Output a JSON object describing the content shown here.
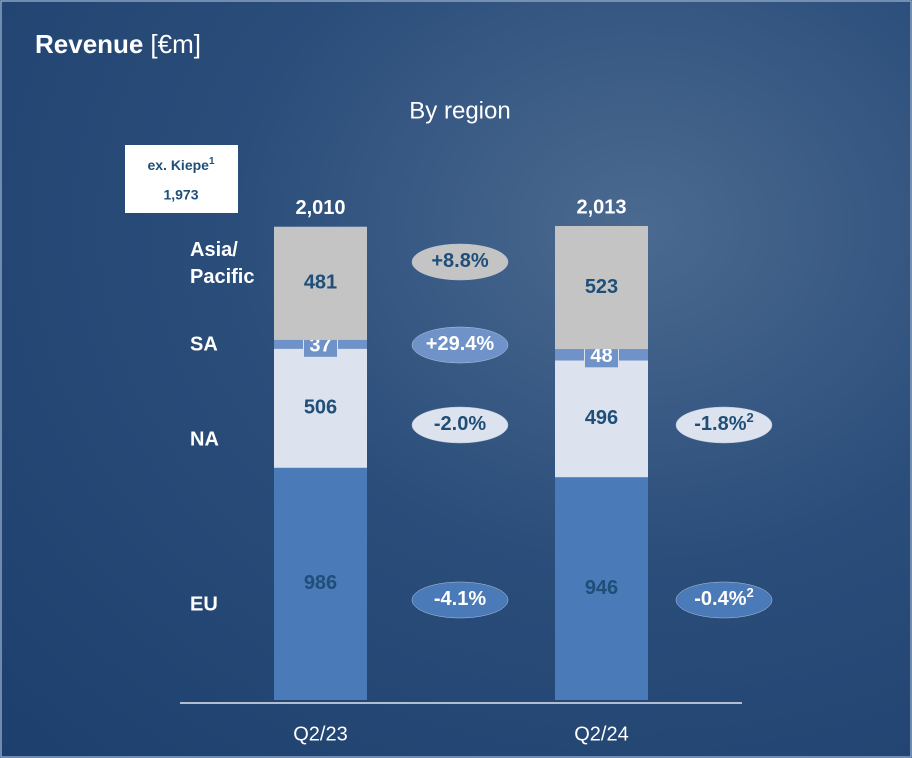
{
  "chart_data": {
    "type": "bar",
    "stacked": true,
    "title": "Revenue",
    "unit": "[€m]",
    "subtitle": "By region",
    "categories": [
      "Q2/23",
      "Q2/24"
    ],
    "totals": {
      "values": [
        2010,
        2013
      ],
      "value_labels": [
        "2,010",
        "2,013"
      ]
    },
    "note": {
      "label": "ex. Kiepe",
      "footnote": "1",
      "value_label": "1,973"
    },
    "series": [
      {
        "name": "EU",
        "color": "#4a7ab8",
        "label_color": "#1f4e79",
        "values": [
          986,
          946
        ],
        "change": {
          "label": "-4.1%"
        },
        "change_ex": {
          "label": "-0.4%",
          "footnote": "2"
        }
      },
      {
        "name": "NA",
        "color": "#dce3ee",
        "label_color": "#1f4e79",
        "values": [
          506,
          496
        ],
        "change": {
          "label": "-2.0%"
        },
        "change_ex": {
          "label": "-1.8%",
          "footnote": "2"
        }
      },
      {
        "name": "SA",
        "color": "#6f93c8",
        "label_color": "#ffffff",
        "values": [
          37,
          48
        ],
        "change": {
          "label": "+29.4%"
        }
      },
      {
        "name": "Asia/ Pacific",
        "color": "#c4c4c4",
        "label_color": "#1f4e79",
        "values": [
          481,
          523
        ],
        "change": {
          "label": "+8.8%"
        }
      }
    ]
  }
}
